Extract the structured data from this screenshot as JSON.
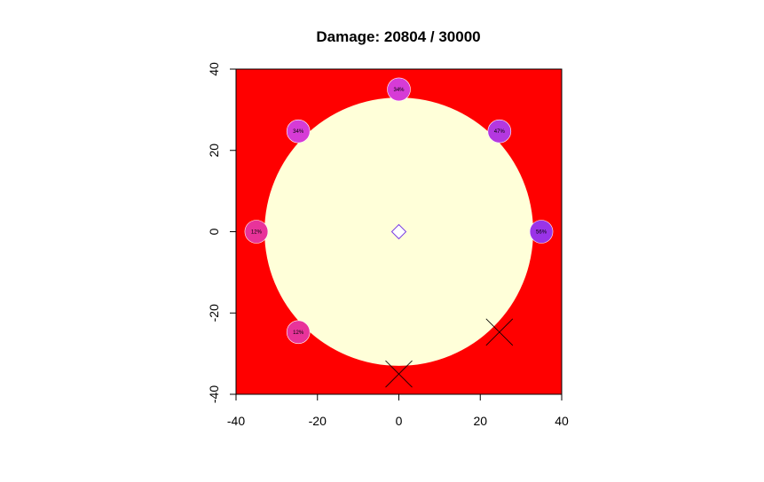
{
  "chart_data": {
    "type": "scatter",
    "title": "Damage:  20804 / 30000",
    "xlabel": "",
    "ylabel": "",
    "xlim": [
      -40,
      40
    ],
    "ylim": [
      -40,
      40
    ],
    "x_ticks": [
      "-40",
      "-20",
      "0",
      "20",
      "40"
    ],
    "y_ticks": [
      "-40",
      "-20",
      "0",
      "20",
      "40"
    ],
    "grid": false,
    "legend": "none",
    "background_color": "#ff0000",
    "circle": {
      "center": [
        0,
        0
      ],
      "radius": 33,
      "color": "#ffffd9"
    },
    "center_marker": {
      "shape": "diamond",
      "x": 0,
      "y": 0,
      "color": "#7b3fe4"
    },
    "points": [
      {
        "x": 0,
        "y": 35,
        "label": "34%",
        "color": "#d63bd6"
      },
      {
        "x": -24.7,
        "y": 24.7,
        "label": "34%",
        "color": "#d63bd6"
      },
      {
        "x": 24.7,
        "y": 24.7,
        "label": "47%",
        "color": "#b438e0"
      },
      {
        "x": -35,
        "y": 0,
        "label": "12%",
        "color": "#e8339a"
      },
      {
        "x": 35,
        "y": 0,
        "label": "56%",
        "color": "#9a34e8"
      },
      {
        "x": -24.7,
        "y": -24.7,
        "label": "12%",
        "color": "#e8339a"
      }
    ],
    "destroyed": [
      {
        "x": 24.7,
        "y": -24.7
      },
      {
        "x": 0,
        "y": -35
      }
    ]
  }
}
